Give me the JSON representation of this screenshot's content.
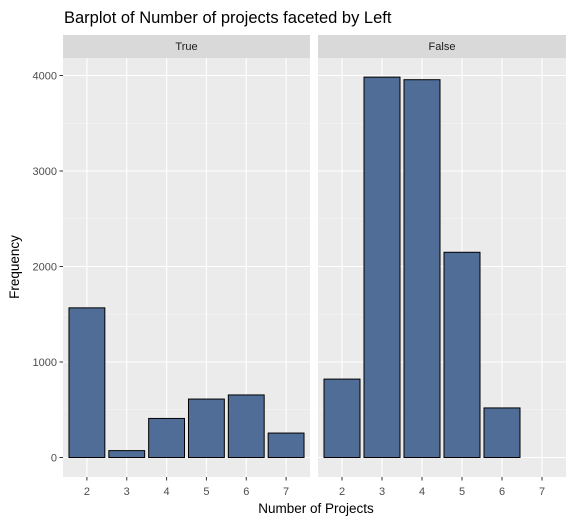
{
  "chart_data": {
    "type": "bar",
    "title": "Barplot of Number of projects faceted by Left",
    "xlabel": "Number of Projects",
    "ylabel": "Frequency",
    "x_ticks": [
      "2",
      "3",
      "4",
      "5",
      "6",
      "7"
    ],
    "ylim": [
      0,
      4200
    ],
    "y_ticks": [
      0,
      1000,
      2000,
      3000,
      4000
    ],
    "bar_color": "#4f6d96",
    "bar_outline": "#000000",
    "panel_background": "#ebebeb",
    "strip_background": "#d9d9d9",
    "grid": true,
    "facets": [
      {
        "label": "True",
        "categories": [
          2,
          3,
          4,
          5,
          6,
          7
        ],
        "values": [
          1567,
          72,
          409,
          612,
          655,
          256
        ]
      },
      {
        "label": "False",
        "categories": [
          2,
          3,
          4,
          5,
          6
        ],
        "values": [
          821,
          3983,
          3956,
          2149,
          519
        ]
      }
    ]
  }
}
